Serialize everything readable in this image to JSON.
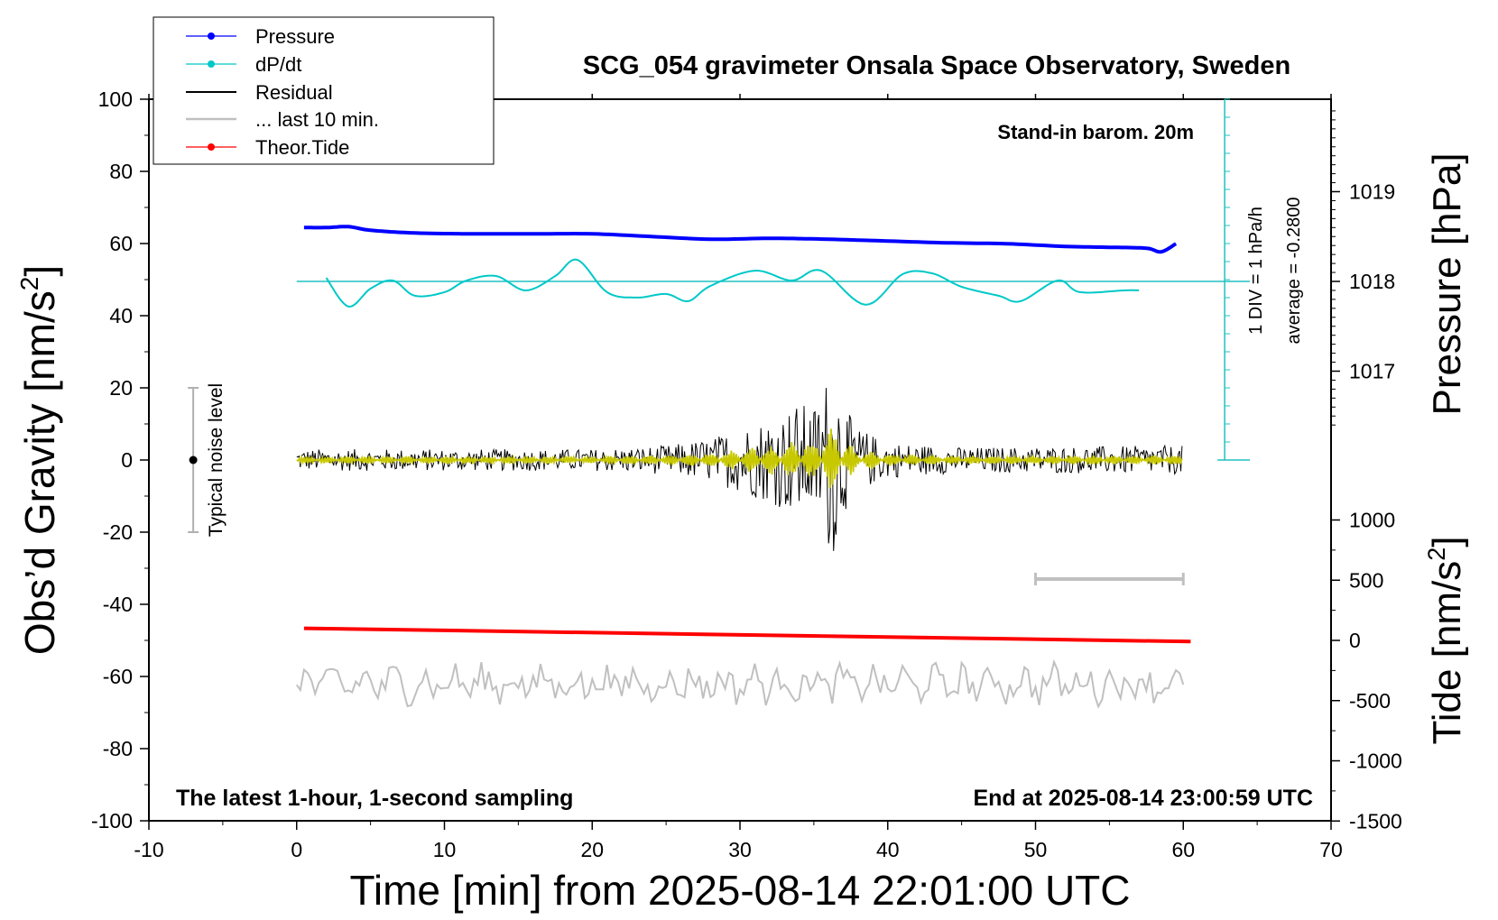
{
  "chart_data": {
    "type": "line",
    "title": "SCG_054 gravimeter Onsala Space Observatory, Sweden",
    "xlabel": "Time [min] from 2025-08-14 22:01:00 UTC",
    "ylabel_left": "Obs’d Gravity [nm/s",
    "ylabel_left_sup": "2",
    "ylabel_left_close": "]",
    "ylabel_right_top": "Pressure [hPa]",
    "ylabel_right_bottom": "Tide [nm/s",
    "ylabel_right_bottom_sup": "2",
    "ylabel_right_bottom_close": "]",
    "xlim": [
      -10,
      70
    ],
    "ylim": [
      -100,
      100
    ],
    "x_ticks": [
      "-10",
      "0",
      "10",
      "20",
      "30",
      "40",
      "50",
      "60",
      "70"
    ],
    "y_ticks": [
      "100",
      "80",
      "60",
      "40",
      "20",
      "0",
      "-20",
      "-40",
      "-60",
      "-80",
      "-100"
    ],
    "pressure_ticks": [
      "1019",
      "1018",
      "1017"
    ],
    "tide_ticks": [
      "1000",
      "500",
      "0",
      "-500",
      "-1000",
      "-1500"
    ],
    "annotations": {
      "barometer": "Stand-in barom. 20m",
      "ddt_scale": "1 DIV = 1 hPa/h",
      "ddt_average": "average = -0.2800",
      "noise": "Typical noise level",
      "bottom_left": "The latest 1-hour, 1-second sampling",
      "bottom_right": "End at 2025-08-14 23:00:59 UTC"
    },
    "legend_position": "top-left",
    "series": [
      {
        "name": "Pressure",
        "color": "#0000ff",
        "unit": "hPa",
        "x": [
          0.5,
          2,
          3.5,
          5,
          8,
          12,
          16,
          20,
          24,
          28,
          32,
          36,
          40,
          44,
          48,
          52,
          55,
          57.5,
          58.5,
          59.5
        ],
        "y": [
          1018.6,
          1018.6,
          1018.61,
          1018.57,
          1018.54,
          1018.53,
          1018.53,
          1018.53,
          1018.5,
          1018.47,
          1018.48,
          1018.47,
          1018.45,
          1018.43,
          1018.42,
          1018.39,
          1018.38,
          1018.37,
          1018.33,
          1018.42
        ]
      },
      {
        "name": "dP/dt",
        "color": "#00c8c8",
        "unit": "hPa/h",
        "zero_line_pressure": 1018,
        "hPa_per_unit": 0.2,
        "x": [
          2,
          3.5,
          5,
          6.5,
          8,
          10,
          11.5,
          13.5,
          15.5,
          17.5,
          19,
          21,
          23,
          25,
          26.5,
          28,
          31,
          33.5,
          35.5,
          38.5,
          41,
          43,
          45,
          47.5,
          49,
          51.5,
          53,
          56,
          57
        ],
        "y": [
          0.2,
          -1.4,
          -0.4,
          0.05,
          -0.8,
          -0.6,
          0.05,
          0.3,
          -0.5,
          0.3,
          1.2,
          -0.6,
          -0.9,
          -0.7,
          -1.1,
          -0.25,
          0.6,
          0.05,
          0.6,
          -1.3,
          0.4,
          0.45,
          -0.3,
          -0.8,
          -1.1,
          0.05,
          -0.6,
          -0.5,
          -0.5
        ]
      },
      {
        "name": "Residual",
        "color": "#000000",
        "unit": "nm/s²",
        "envelope_x": [
          0,
          20,
          25,
          28,
          30,
          32,
          34,
          35,
          36,
          36.5,
          37,
          38,
          40,
          45,
          60
        ],
        "envelope_y": [
          3,
          3,
          4,
          6,
          9,
          12,
          16,
          15,
          25,
          27,
          15,
          9,
          5,
          3.5,
          4
        ]
      },
      {
        "name": "... last 10 min.",
        "color": "#c0c0c0",
        "unit": "nm/s²",
        "x_range": [
          50,
          60
        ],
        "display_offset": -62,
        "amplitude": 4
      },
      {
        "name": "Theor.Tide",
        "color": "#ff0000",
        "unit": "nm/s²",
        "x": [
          0.5,
          60.5
        ],
        "y": [
          100,
          -10
        ]
      }
    ],
    "noise_bar": {
      "x": -7,
      "y_min": -20,
      "y_max": 20
    }
  }
}
